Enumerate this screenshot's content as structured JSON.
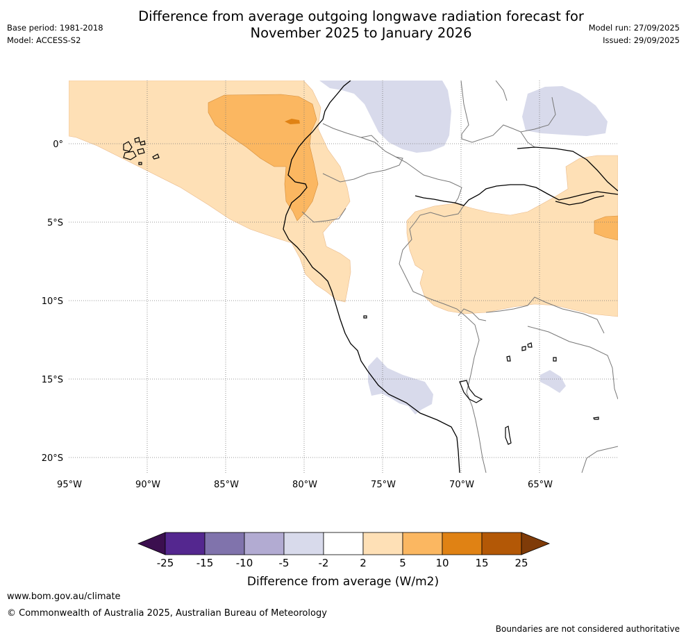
{
  "title": {
    "line1": "Difference from average outgoing longwave radiation forecast for",
    "line2": "November 2025 to January 2026"
  },
  "meta": {
    "base_period": "Base period: 1981-2018",
    "model": "Model: ACCESS-S2",
    "model_run": "Model run: 27/09/2025",
    "issued": "Issued: 29/09/2025"
  },
  "map": {
    "lat_labels": [
      "0°",
      "5°S",
      "10°S",
      "15°S",
      "20°S"
    ],
    "lon_labels": [
      "95°W",
      "90°W",
      "85°W",
      "80°W",
      "75°W",
      "70°W",
      "65°W"
    ],
    "lat_values": [
      0,
      -5,
      -10,
      -15,
      -20
    ],
    "lon_values": [
      -95,
      -90,
      -85,
      -80,
      -75,
      -70,
      -65
    ],
    "lon_range": [
      -95,
      -60.2
    ],
    "lat_range": [
      -21,
      4
    ]
  },
  "legend": {
    "tick_labels": [
      "-25",
      "-15",
      "-10",
      "-5",
      "-2",
      "2",
      "5",
      "10",
      "15",
      "25"
    ],
    "colors": [
      "#3b0f4f",
      "#54278f",
      "#8073ac",
      "#b2abd2",
      "#d8daeb",
      "#ffffff",
      "#fee0b6",
      "#fbb761",
      "#e08214",
      "#b35806",
      "#7f3b08"
    ],
    "label": "Difference from average (W/m2)"
  },
  "footer": {
    "url": "www.bom.gov.au/climate",
    "copyright": "© Commonwealth of Australia 2025, Australian Bureau of Meteorology",
    "disclaimer": "Boundaries are not considered authoritative"
  }
}
